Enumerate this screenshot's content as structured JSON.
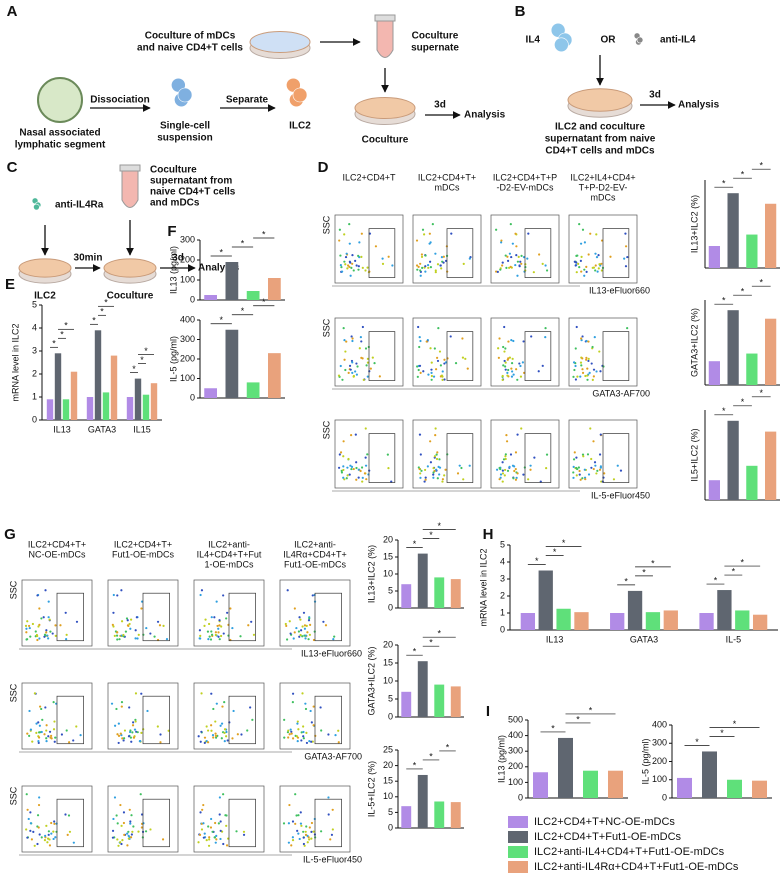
{
  "legend": [
    {
      "name": "ILC2+CD4+T+NC-OE-mDCs",
      "color": "#b18be6"
    },
    {
      "name": "ILC2+CD4+T+Fut1-OE-mDCs",
      "color": "#5f6670"
    },
    {
      "name": "ILC2+anti-IL4+CD4+T+Fut1-OE-mDCs",
      "color": "#5fe07a"
    },
    {
      "name": "ILC2+anti-IL4Rα+CD4+T+Fut1-OE-mDCs",
      "color": "#e9a27c"
    }
  ],
  "panel_a": {
    "letter": "A",
    "top_box": [
      "Coculture of mDCs",
      "and naive CD4+T cells"
    ],
    "supernate": [
      "Coculture",
      "supernate"
    ],
    "tissue": [
      "Nasal associated",
      "lymphatic segment"
    ],
    "step1": "Dissociation",
    "cells": [
      "Single-cell",
      "suspension"
    ],
    "step2": "Separate",
    "ilc2": "ILC2",
    "coculture": "Coculture",
    "duration": "3d",
    "result": "Analysis"
  },
  "panel_b": {
    "letter": "B",
    "il4": "IL4",
    "or": "OR",
    "anti": "anti-IL4",
    "duration": "3d",
    "result": "Analysis",
    "caption": [
      "ILC2 and coculture",
      "supernatant from naive",
      "CD4+T cells and mDCs"
    ]
  },
  "panel_c": {
    "letter": "C",
    "anti": "anti-IL4Ra",
    "supernatant": [
      "Coculture",
      "supernatant from",
      "naive CD4+T cells",
      "and mDCs"
    ],
    "wait": "30min",
    "duration": "3d",
    "result": "Analysis",
    "ilc2": "ILC2",
    "coculture": "Coculture"
  },
  "panel_d": {
    "letter": "D",
    "columns": [
      [
        "ILC2+CD4+T"
      ],
      [
        "ILC2+CD4+T+",
        "mDCs"
      ],
      [
        "ILC2+CD4+T+P",
        "-D2-EV-mDCs"
      ],
      [
        "ILC2+IL4+CD4+",
        "T+P-D2-EV-",
        "mDCs"
      ]
    ],
    "y_label": "SSC",
    "x_labels": [
      "IL13-eFluor660",
      "GATA3-AF700",
      "IL-5-eFluor450"
    ]
  },
  "panel_e": {
    "letter": "E"
  },
  "panel_f": {
    "letter": "F"
  },
  "panel_g": {
    "letter": "G",
    "columns": [
      [
        "ILC2+CD4+T+",
        "NC-OE-mDCs"
      ],
      [
        "ILC2+CD4+T+",
        "Fut1-OE-mDCs"
      ],
      [
        "ILC2+anti-",
        "IL4+CD4+T+Fut",
        "1-OE-mDCs"
      ],
      [
        "ILC2+anti-",
        "IL4Rα+CD4+T+",
        "Fut1-OE-mDCs"
      ]
    ],
    "y_label": "SSC",
    "x_labels": [
      "IL13-eFluor660",
      "GATA3-AF700",
      "IL-5-eFluor450"
    ]
  },
  "panel_h": {
    "letter": "H"
  },
  "panel_i": {
    "letter": "I"
  },
  "chart_data": [
    {
      "type": "bar",
      "y_label": "IL13+ILC2 (%)",
      "values": [
        2.5,
        8.5,
        3.8,
        7.3
      ],
      "ylim": [
        0,
        10
      ],
      "significance": [
        {
          "from": 0,
          "to": 1,
          "label": "*"
        },
        {
          "from": 1,
          "to": 2,
          "label": "*"
        },
        {
          "from": 2,
          "to": 3,
          "label": "*"
        }
      ]
    },
    {
      "type": "bar",
      "y_label": "GATA3+ILC2 (%)",
      "values": [
        2.8,
        8.8,
        3.7,
        7.8
      ],
      "ylim": [
        0,
        10
      ],
      "significance": [
        {
          "from": 0,
          "to": 1,
          "label": "*"
        },
        {
          "from": 1,
          "to": 2,
          "label": "*"
        },
        {
          "from": 2,
          "to": 3,
          "label": "*"
        }
      ]
    },
    {
      "type": "bar",
      "y_label": "IL5+ILC2 (%)",
      "values": [
        2.2,
        8.8,
        3.8,
        7.6
      ],
      "ylim": [
        0,
        10
      ],
      "significance": [
        {
          "from": 0,
          "to": 1,
          "label": "*"
        },
        {
          "from": 1,
          "to": 2,
          "label": "*"
        },
        {
          "from": 2,
          "to": 3,
          "label": "*"
        }
      ]
    },
    {
      "type": "grouped_bar",
      "y_label": "mRNA level in ILC2",
      "categories": [
        "IL13",
        "GATA3",
        "IL15"
      ],
      "series": [
        {
          "values": [
            0.9,
            1.0,
            1.0
          ]
        },
        {
          "values": [
            2.9,
            3.9,
            1.8
          ]
        },
        {
          "values": [
            0.9,
            1.2,
            1.1
          ]
        },
        {
          "values": [
            2.1,
            2.8,
            1.6
          ]
        }
      ],
      "ylim": [
        0,
        5
      ],
      "yticks": [
        0,
        1,
        2,
        3,
        4,
        5
      ],
      "significance": [
        {
          "category": 0,
          "from": 0,
          "to": 1,
          "label": "*"
        },
        {
          "category": 0,
          "from": 1,
          "to": 2,
          "label": "*"
        },
        {
          "category": 0,
          "from": 1,
          "to": 3,
          "label": "*"
        },
        {
          "category": 1,
          "from": 0,
          "to": 1,
          "label": "*"
        },
        {
          "category": 1,
          "from": 1,
          "to": 2,
          "label": "*"
        },
        {
          "category": 1,
          "from": 1,
          "to": 3,
          "label": "*"
        },
        {
          "category": 2,
          "from": 0,
          "to": 1,
          "label": "*"
        },
        {
          "category": 2,
          "from": 1,
          "to": 2,
          "label": "*"
        },
        {
          "category": 2,
          "from": 1,
          "to": 3,
          "label": "*"
        }
      ]
    },
    {
      "type": "bar",
      "y_label": "IL13 (pg/ml)",
      "values": [
        25,
        190,
        45,
        110
      ],
      "ylim": [
        0,
        300
      ],
      "yticks": [
        0,
        100,
        200,
        300
      ],
      "significance": [
        {
          "from": 0,
          "to": 1,
          "label": "*"
        },
        {
          "from": 1,
          "to": 2,
          "label": "*"
        },
        {
          "from": 2,
          "to": 3,
          "label": "*"
        }
      ]
    },
    {
      "type": "bar",
      "y_label": "IL-5 (pg/ml)",
      "values": [
        50,
        350,
        80,
        230
      ],
      "ylim": [
        0,
        400
      ],
      "yticks": [
        0,
        100,
        200,
        300,
        400
      ],
      "significance": [
        {
          "from": 0,
          "to": 1,
          "label": "*"
        },
        {
          "from": 1,
          "to": 2,
          "label": "*"
        },
        {
          "from": 2,
          "to": 3,
          "label": "*"
        }
      ]
    },
    {
      "type": "bar",
      "y_label": "IL13+ILC2 (%)",
      "values": [
        7,
        16,
        9,
        8.5
      ],
      "ylim": [
        0,
        20
      ],
      "yticks": [
        0,
        5,
        10,
        15,
        20
      ],
      "significance": [
        {
          "from": 0,
          "to": 1,
          "label": "*"
        },
        {
          "from": 1,
          "to": 2,
          "label": "*"
        },
        {
          "from": 1,
          "to": 3,
          "label": "*"
        }
      ]
    },
    {
      "type": "bar",
      "y_label": "GATA3+ILC2 (%)",
      "values": [
        7,
        15.5,
        9,
        8.5
      ],
      "ylim": [
        0,
        20
      ],
      "yticks": [
        0,
        5,
        10,
        15,
        20
      ],
      "significance": [
        {
          "from": 0,
          "to": 1,
          "label": "*"
        },
        {
          "from": 1,
          "to": 2,
          "label": "*"
        },
        {
          "from": 1,
          "to": 3,
          "label": "*"
        }
      ]
    },
    {
      "type": "bar",
      "y_label": "IL-5+ILC2 (%)",
      "values": [
        7,
        17,
        8.5,
        8.3
      ],
      "ylim": [
        0,
        25
      ],
      "yticks": [
        0,
        5,
        10,
        15,
        20,
        25
      ],
      "significance": [
        {
          "from": 0,
          "to": 1,
          "label": "*"
        },
        {
          "from": 1,
          "to": 2,
          "label": "*"
        },
        {
          "from": 2,
          "to": 3,
          "label": "*"
        }
      ]
    },
    {
      "type": "grouped_bar",
      "y_label": "mRNA level in ILC2",
      "categories": [
        "IL13",
        "GATA3",
        "IL-5"
      ],
      "series": [
        {
          "values": [
            1.0,
            1.0,
            1.0
          ]
        },
        {
          "values": [
            3.5,
            2.3,
            2.35
          ]
        },
        {
          "values": [
            1.25,
            1.05,
            1.15
          ]
        },
        {
          "values": [
            1.05,
            1.15,
            0.9
          ]
        }
      ],
      "ylim": [
        0,
        5
      ],
      "yticks": [
        0,
        1,
        2,
        3,
        4,
        5
      ],
      "significance": [
        {
          "category": 0,
          "from": 0,
          "to": 1,
          "label": "*"
        },
        {
          "category": 0,
          "from": 1,
          "to": 2,
          "label": "*"
        },
        {
          "category": 0,
          "from": 1,
          "to": 3,
          "label": "*"
        },
        {
          "category": 1,
          "from": 0,
          "to": 1,
          "label": "*"
        },
        {
          "category": 1,
          "from": 1,
          "to": 2,
          "label": "*"
        },
        {
          "category": 1,
          "from": 1,
          "to": 3,
          "label": "*"
        },
        {
          "category": 2,
          "from": 0,
          "to": 1,
          "label": "*"
        },
        {
          "category": 2,
          "from": 1,
          "to": 2,
          "label": "*"
        },
        {
          "category": 2,
          "from": 1,
          "to": 3,
          "label": "*"
        }
      ]
    },
    {
      "type": "bar",
      "y_label": "IL13 (pg/ml)",
      "values": [
        165,
        385,
        175,
        175
      ],
      "ylim": [
        0,
        500
      ],
      "yticks": [
        0,
        100,
        200,
        300,
        400,
        500
      ],
      "significance": [
        {
          "from": 0,
          "to": 1,
          "label": "*"
        },
        {
          "from": 1,
          "to": 2,
          "label": "*"
        },
        {
          "from": 1,
          "to": 3,
          "label": "*"
        }
      ]
    },
    {
      "type": "bar",
      "y_label": "IL-5 (pg/ml)",
      "values": [
        110,
        255,
        100,
        95
      ],
      "ylim": [
        0,
        400
      ],
      "yticks": [
        0,
        100,
        200,
        300,
        400
      ],
      "significance": [
        {
          "from": 0,
          "to": 1,
          "label": "*"
        },
        {
          "from": 1,
          "to": 2,
          "label": "*"
        },
        {
          "from": 1,
          "to": 3,
          "label": "*"
        }
      ]
    }
  ]
}
